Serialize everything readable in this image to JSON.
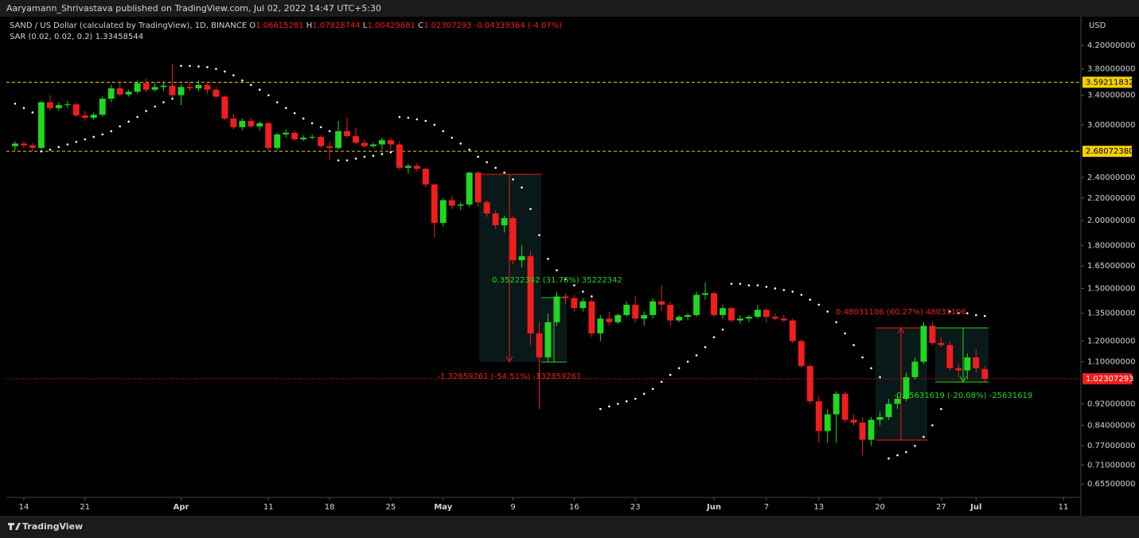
{
  "chart_data": {
    "type": "candlestick",
    "header": "Aaryamann_Shrivastava published on TradingView.com, Jul 02, 2022 14:47 UTC+5:30",
    "title": "SAND / US Dollar (calculated by TradingView), 1D, BINANCE",
    "ohlc_letters": [
      "O",
      "H",
      "L",
      "C"
    ],
    "change": "-0.04339364",
    "change_pct": "(-4.07%)",
    "brand": "TradingView",
    "y_unit": "USD",
    "up_color": "#1fd81f",
    "down_color": "#f21d1d",
    "log_scale": true,
    "ylim": [
      0.619,
      4.725
    ],
    "xlim": [
      "2022-03-12",
      "2022-07-13"
    ],
    "yticks": [
      {
        "value": 4.2,
        "label": "4.20000000"
      },
      {
        "value": 3.8,
        "label": "3.80000000"
      },
      {
        "value": 3.4,
        "label": "3.40000000"
      },
      {
        "value": 3.0,
        "label": "3.00000000"
      },
      {
        "value": 2.4,
        "label": "2.40000000"
      },
      {
        "value": 2.2,
        "label": "2.20000000"
      },
      {
        "value": 2.0,
        "label": "2.00000000"
      },
      {
        "value": 1.8,
        "label": "1.80000000"
      },
      {
        "value": 1.65,
        "label": "1.65000000"
      },
      {
        "value": 1.5,
        "label": "1.50000000"
      },
      {
        "value": 1.35,
        "label": "1.35000000"
      },
      {
        "value": 1.2,
        "label": "1.20000000"
      },
      {
        "value": 1.1,
        "label": "1.10000000"
      },
      {
        "value": 0.92,
        "label": "0.92000000"
      },
      {
        "value": 0.84,
        "label": "0.84000000"
      },
      {
        "value": 0.77,
        "label": "0.77000000"
      },
      {
        "value": 0.71,
        "label": "0.71000000"
      },
      {
        "value": 0.655,
        "label": "0.65500000"
      }
    ],
    "xticks": [
      {
        "value": "2022-03-14",
        "label": "14"
      },
      {
        "value": "2022-03-21",
        "label": "21"
      },
      {
        "value": "2022-04-01",
        "label": "Apr"
      },
      {
        "value": "2022-04-11",
        "label": "11"
      },
      {
        "value": "2022-04-18",
        "label": "18"
      },
      {
        "value": "2022-04-25",
        "label": "25"
      },
      {
        "value": "2022-05-01",
        "label": "May"
      },
      {
        "value": "2022-05-09",
        "label": "9"
      },
      {
        "value": "2022-05-16",
        "label": "16"
      },
      {
        "value": "2022-05-23",
        "label": "23"
      },
      {
        "value": "2022-06-01",
        "label": "Jun"
      },
      {
        "value": "2022-06-07",
        "label": "7"
      },
      {
        "value": "2022-06-13",
        "label": "13"
      },
      {
        "value": "2022-06-20",
        "label": "20"
      },
      {
        "value": "2022-06-27",
        "label": "27"
      },
      {
        "value": "2022-07-01",
        "label": "Jul"
      },
      {
        "value": "2022-07-11",
        "label": "11"
      }
    ],
    "hlines": [
      {
        "value": 3.59211832,
        "label": "3.59211832",
        "color": "#f5d000"
      },
      {
        "value": 2.6807238,
        "label": "2.68072380",
        "color": "#f5d000"
      }
    ],
    "annotations": [
      {
        "text": "0.35222342 (31.76%) 35222342",
        "color": "#1fd81f"
      },
      {
        "text": "-1.32859261 (-54.51%) -132859261",
        "color": "#f21d1d"
      },
      {
        "text": "0.48031106 (60.27%) 48031106",
        "color": "#f21d1d"
      },
      {
        "text": "-0.25631619 (-20.08%) -25631619",
        "color": "#1fd81f"
      }
    ],
    "x": [
      "2022-03-13",
      "2022-03-14",
      "2022-03-15",
      "2022-03-16",
      "2022-03-17",
      "2022-03-18",
      "2022-03-19",
      "2022-03-20",
      "2022-03-21",
      "2022-03-22",
      "2022-03-23",
      "2022-03-24",
      "2022-03-25",
      "2022-03-26",
      "2022-03-27",
      "2022-03-28",
      "2022-03-29",
      "2022-03-30",
      "2022-03-31",
      "2022-04-01",
      "2022-04-02",
      "2022-04-03",
      "2022-04-04",
      "2022-04-05",
      "2022-04-06",
      "2022-04-07",
      "2022-04-08",
      "2022-04-09",
      "2022-04-10",
      "2022-04-11",
      "2022-04-12",
      "2022-04-13",
      "2022-04-14",
      "2022-04-15",
      "2022-04-16",
      "2022-04-17",
      "2022-04-18",
      "2022-04-19",
      "2022-04-20",
      "2022-04-21",
      "2022-04-22",
      "2022-04-23",
      "2022-04-24",
      "2022-04-25",
      "2022-04-26",
      "2022-04-27",
      "2022-04-28",
      "2022-04-29",
      "2022-04-30",
      "2022-05-01",
      "2022-05-02",
      "2022-05-03",
      "2022-05-04",
      "2022-05-05",
      "2022-05-06",
      "2022-05-07",
      "2022-05-08",
      "2022-05-09",
      "2022-05-10",
      "2022-05-11",
      "2022-05-12",
      "2022-05-13",
      "2022-05-14",
      "2022-05-15",
      "2022-05-16",
      "2022-05-17",
      "2022-05-18",
      "2022-05-19",
      "2022-05-20",
      "2022-05-21",
      "2022-05-22",
      "2022-05-23",
      "2022-05-24",
      "2022-05-25",
      "2022-05-26",
      "2022-05-27",
      "2022-05-28",
      "2022-05-29",
      "2022-05-30",
      "2022-05-31",
      "2022-06-01",
      "2022-06-02",
      "2022-06-03",
      "2022-06-04",
      "2022-06-05",
      "2022-06-06",
      "2022-06-07",
      "2022-06-08",
      "2022-06-09",
      "2022-06-10",
      "2022-06-11",
      "2022-06-12",
      "2022-06-13",
      "2022-06-14",
      "2022-06-15",
      "2022-06-16",
      "2022-06-17",
      "2022-06-18",
      "2022-06-19",
      "2022-06-20",
      "2022-06-21",
      "2022-06-22",
      "2022-06-23",
      "2022-06-24",
      "2022-06-25",
      "2022-06-26",
      "2022-06-27",
      "2022-06-28",
      "2022-06-29",
      "2022-06-30",
      "2022-07-01",
      "2022-07-02"
    ],
    "open": [
      2.74,
      2.77,
      2.75,
      2.72,
      3.3,
      3.22,
      3.26,
      3.27,
      3.12,
      3.09,
      3.13,
      3.35,
      3.5,
      3.41,
      3.45,
      3.58,
      3.48,
      3.52,
      3.54,
      3.4,
      3.52,
      3.5,
      3.55,
      3.48,
      3.38,
      3.08,
      2.97,
      3.05,
      2.98,
      3.02,
      2.72,
      2.88,
      2.9,
      2.82,
      2.84,
      2.85,
      2.74,
      2.72,
      2.92,
      2.86,
      2.78,
      2.74,
      2.76,
      2.81,
      2.76,
      2.5,
      2.52,
      2.49,
      2.33,
      1.98,
      2.18,
      2.13,
      2.14,
      2.45,
      2.16,
      2.06,
      1.96,
      2.02,
      1.69,
      1.72,
      1.24,
      1.12,
      1.3,
      1.45,
      1.44,
      1.38,
      1.42,
      1.24,
      1.32,
      1.3,
      1.34,
      1.4,
      1.32,
      1.34,
      1.42,
      1.4,
      1.31,
      1.33,
      1.34,
      1.46,
      1.47,
      1.34,
      1.38,
      1.31,
      1.32,
      1.33,
      1.37,
      1.33,
      1.32,
      1.31,
      1.2,
      1.08,
      0.93,
      0.82,
      0.88,
      0.96,
      0.86,
      0.85,
      0.79,
      0.86,
      0.87,
      0.92,
      0.94,
      1.03,
      1.1,
      1.28,
      1.19,
      1.18,
      1.07,
      1.06,
      1.12,
      1.06615281
    ],
    "high": [
      2.8,
      2.8,
      2.78,
      3.32,
      3.4,
      3.3,
      3.32,
      3.3,
      3.18,
      3.16,
      3.38,
      3.55,
      3.58,
      3.48,
      3.62,
      3.65,
      3.58,
      3.6,
      3.88,
      3.56,
      3.6,
      3.62,
      3.58,
      3.52,
      3.4,
      3.14,
      3.08,
      3.08,
      3.04,
      3.04,
      2.9,
      2.94,
      2.93,
      2.87,
      2.88,
      2.87,
      2.8,
      3.05,
      3.1,
      2.96,
      2.82,
      2.78,
      2.84,
      2.84,
      2.8,
      2.54,
      2.55,
      2.5,
      2.34,
      2.2,
      2.22,
      2.16,
      2.46,
      2.46,
      2.18,
      2.09,
      2.04,
      2.04,
      1.8,
      1.76,
      1.3,
      1.35,
      1.48,
      1.47,
      1.46,
      1.44,
      1.43,
      1.34,
      1.36,
      1.35,
      1.42,
      1.45,
      1.36,
      1.44,
      1.52,
      1.42,
      1.34,
      1.35,
      1.48,
      1.54,
      1.48,
      1.4,
      1.39,
      1.34,
      1.34,
      1.4,
      1.38,
      1.35,
      1.34,
      1.32,
      1.21,
      1.09,
      0.95,
      0.9,
      0.97,
      0.97,
      0.88,
      0.87,
      0.87,
      0.89,
      0.94,
      0.96,
      1.05,
      1.12,
      1.3,
      1.3,
      1.22,
      1.2,
      1.09,
      1.14,
      1.16,
      1.07828744
    ],
    "low": [
      2.69,
      2.72,
      2.68,
      2.7,
      3.18,
      3.18,
      3.22,
      3.1,
      3.05,
      3.06,
      3.1,
      3.3,
      3.38,
      3.38,
      3.42,
      3.44,
      3.45,
      3.46,
      3.36,
      3.26,
      3.46,
      3.46,
      3.42,
      3.36,
      3.06,
      2.94,
      2.93,
      2.96,
      2.93,
      2.68,
      2.7,
      2.84,
      2.8,
      2.8,
      2.82,
      2.72,
      2.58,
      2.7,
      2.84,
      2.76,
      2.72,
      2.72,
      2.7,
      2.7,
      2.48,
      2.44,
      2.46,
      2.3,
      1.86,
      1.95,
      2.1,
      2.09,
      2.12,
      2.12,
      2.03,
      1.93,
      1.9,
      1.66,
      1.64,
      1.18,
      0.9,
      1.1,
      1.28,
      1.4,
      1.36,
      1.36,
      1.22,
      1.2,
      1.28,
      1.29,
      1.33,
      1.3,
      1.28,
      1.32,
      1.36,
      1.28,
      1.3,
      1.31,
      1.33,
      1.43,
      1.33,
      1.32,
      1.3,
      1.29,
      1.3,
      1.32,
      1.3,
      1.31,
      1.3,
      1.19,
      1.07,
      0.92,
      0.78,
      0.78,
      0.78,
      0.85,
      0.84,
      0.74,
      0.77,
      0.84,
      0.86,
      0.9,
      0.93,
      1.02,
      1.09,
      1.18,
      1.17,
      1.06,
      1.03,
      1.02,
      1.05,
      1.00429681
    ],
    "close": [
      2.77,
      2.75,
      2.72,
      3.3,
      3.22,
      3.26,
      3.27,
      3.12,
      3.09,
      3.13,
      3.35,
      3.5,
      3.41,
      3.45,
      3.58,
      3.48,
      3.52,
      3.54,
      3.4,
      3.52,
      3.5,
      3.55,
      3.48,
      3.38,
      3.08,
      2.97,
      3.05,
      2.98,
      3.02,
      2.72,
      2.88,
      2.9,
      2.82,
      2.84,
      2.85,
      2.74,
      2.72,
      2.92,
      2.86,
      2.78,
      2.74,
      2.76,
      2.81,
      2.76,
      2.5,
      2.52,
      2.49,
      2.33,
      1.98,
      2.18,
      2.13,
      2.14,
      2.45,
      2.16,
      2.06,
      1.96,
      2.02,
      1.69,
      1.72,
      1.24,
      1.12,
      1.3,
      1.45,
      1.44,
      1.38,
      1.42,
      1.24,
      1.32,
      1.3,
      1.34,
      1.4,
      1.32,
      1.34,
      1.42,
      1.4,
      1.31,
      1.33,
      1.34,
      1.46,
      1.47,
      1.34,
      1.38,
      1.31,
      1.32,
      1.33,
      1.37,
      1.33,
      1.32,
      1.31,
      1.2,
      1.08,
      0.93,
      0.82,
      0.88,
      0.96,
      0.86,
      0.85,
      0.79,
      0.86,
      0.87,
      0.92,
      0.94,
      1.03,
      1.1,
      1.28,
      1.19,
      1.18,
      1.07,
      1.06,
      1.12,
      1.07,
      1.02307293
    ],
    "indicator": {
      "name": "SAR (0.02, 0.02, 0.2)",
      "color": "#ffffff",
      "values": [
        3.28,
        3.22,
        3.16,
        2.68,
        2.7,
        2.73,
        2.76,
        2.79,
        2.82,
        2.85,
        2.88,
        2.92,
        2.98,
        3.04,
        3.1,
        3.18,
        3.24,
        3.3,
        3.35,
        3.85,
        3.85,
        3.84,
        3.83,
        3.8,
        3.76,
        3.7,
        3.62,
        3.55,
        3.48,
        3.4,
        3.3,
        3.22,
        3.15,
        3.08,
        3.02,
        2.97,
        2.92,
        2.58,
        2.58,
        2.6,
        2.62,
        2.63,
        2.65,
        2.67,
        3.1,
        3.09,
        3.07,
        3.05,
        3.0,
        2.92,
        2.84,
        2.77,
        2.7,
        2.62,
        2.56,
        2.5,
        2.45,
        2.38,
        2.3,
        2.1,
        1.88,
        1.7,
        1.62,
        1.56,
        1.52,
        1.48,
        1.45,
        0.9,
        0.91,
        0.92,
        0.93,
        0.94,
        0.96,
        0.98,
        1.01,
        1.04,
        1.07,
        1.1,
        1.13,
        1.17,
        1.22,
        1.26,
        1.53,
        1.53,
        1.52,
        1.52,
        1.51,
        1.5,
        1.49,
        1.48,
        1.46,
        1.43,
        1.4,
        1.36,
        1.3,
        1.24,
        1.18,
        1.12,
        1.07,
        1.03,
        0.73,
        0.74,
        0.75,
        0.77,
        0.8,
        0.84,
        0.9,
        1.36,
        1.35,
        1.35,
        1.34,
        1.33458544
      ]
    }
  }
}
